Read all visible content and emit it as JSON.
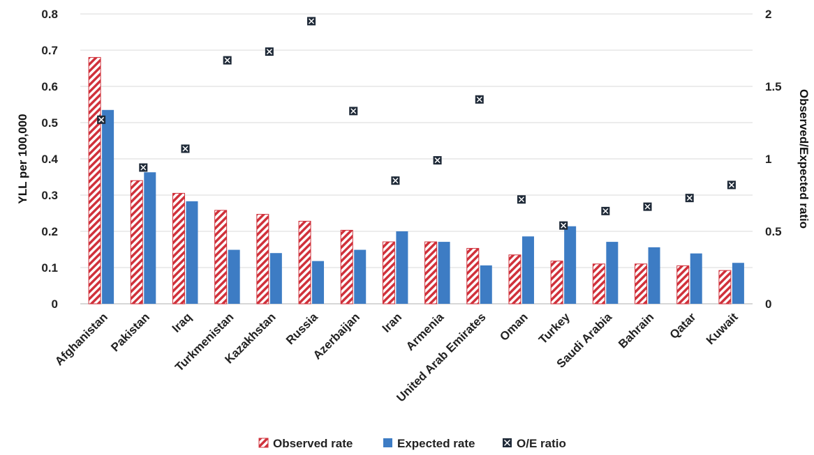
{
  "chart_data": {
    "type": "bar",
    "title": "",
    "categories": [
      "Afghanistan",
      "Pakistan",
      "Iraq",
      "Turkmenistan",
      "Kazakhstan",
      "Russia",
      "Azerbaijan",
      "Iran",
      "Armenia",
      "United Arab Emirates",
      "Oman",
      "Turkey",
      "Saudi Arabia",
      "Bahrain",
      "Qatar",
      "Kuwait"
    ],
    "series": [
      {
        "name": "Observed rate",
        "type": "bar",
        "axis": "left",
        "color": "#d0313b",
        "pattern": "diagonal-hatch",
        "values": [
          0.68,
          0.34,
          0.305,
          0.258,
          0.247,
          0.228,
          0.203,
          0.171,
          0.171,
          0.153,
          0.135,
          0.118,
          0.11,
          0.11,
          0.105,
          0.092
        ]
      },
      {
        "name": "Expected rate",
        "type": "bar",
        "axis": "left",
        "color": "#3d7cc4",
        "values": [
          0.535,
          0.363,
          0.283,
          0.149,
          0.14,
          0.118,
          0.149,
          0.2,
          0.171,
          0.106,
          0.186,
          0.214,
          0.171,
          0.156,
          0.139,
          0.113
        ]
      },
      {
        "name": "O/E ratio",
        "type": "scatter",
        "axis": "right",
        "color": "#1f2a38",
        "marker": "x-square",
        "values": [
          1.27,
          0.94,
          1.07,
          1.68,
          1.74,
          1.95,
          1.33,
          0.85,
          0.99,
          1.41,
          0.72,
          0.54,
          0.64,
          0.67,
          0.73,
          0.82
        ]
      }
    ],
    "y_left": {
      "label": "YLL per 100,000",
      "lim": [
        0,
        0.8
      ],
      "ticks": [
        "0",
        "0.1",
        "0.2",
        "0.3",
        "0.4",
        "0.5",
        "0.6",
        "0.7",
        "0.8"
      ]
    },
    "y_right": {
      "label": "Observed/Expected ratio",
      "lim": [
        0,
        2
      ],
      "ticks": [
        "0",
        "0.5",
        "1",
        "1.5",
        "2"
      ]
    },
    "grid": true,
    "legend": {
      "position": "bottom",
      "entries": [
        "Observed rate",
        "Expected rate",
        "O/E ratio"
      ]
    },
    "gridline_color": "#d9d9d9"
  }
}
